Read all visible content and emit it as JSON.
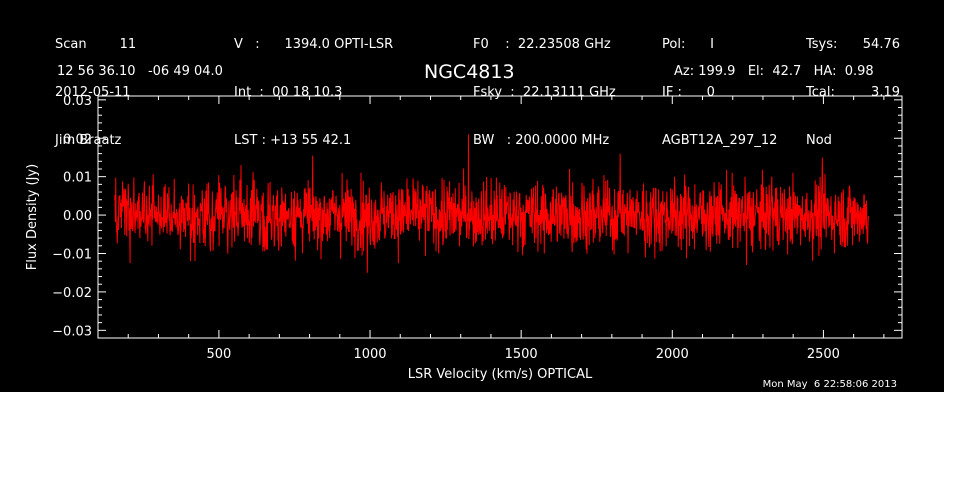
{
  "header": {
    "col1": [
      "Scan        11",
      "2012-05-11",
      "Jim Braatz"
    ],
    "col2": [
      "V   :      1394.0 OPTI-LSR",
      "Int  :  00 18 10.3",
      "LST : +13 55 42.1"
    ],
    "col3": [
      "F0    :  22.23508 GHz",
      "Fsky  :  22.13111 GHz",
      "BW   : 200.0000 MHz"
    ],
    "col4": [
      "Pol:      I",
      "IF :      0",
      "AGBT12A_297_12"
    ],
    "col5_labels": [
      "Tsys:",
      "Tcal:",
      "Nod"
    ],
    "col5_values": [
      "54.76",
      "3.19",
      ""
    ],
    "coords": "12 56 36.10   -06 49 04.0",
    "source": "NGC4813",
    "pointing": "Az: 199.9   El:  42.7   HA:  0.98",
    "timestamp": "Mon May  6 22:58:06 2013"
  },
  "colors": {
    "background": "#000000",
    "foreground": "#ffffff",
    "series": "#ff0000"
  },
  "chart_data": {
    "type": "line",
    "title": "NGC4813",
    "xlabel": "LSR Velocity (km/s) OPTICAL",
    "ylabel": "Flux Density (Jy)",
    "xlim": [
      100,
      2760
    ],
    "ylim": [
      -0.032,
      0.031
    ],
    "x_ticks": [
      500,
      1000,
      1500,
      2000,
      2500
    ],
    "x_tick_labels": [
      "500",
      "1000",
      "1500",
      "2000",
      "2500"
    ],
    "y_ticks": [
      -0.03,
      -0.02,
      -0.01,
      0.0,
      0.01,
      0.02,
      0.03
    ],
    "y_tick_labels": [
      "−0.03",
      "−0.02",
      "−0.01",
      "0.00",
      "0.01",
      "0.02",
      "0.03"
    ],
    "series": [
      {
        "color": "#ff0000",
        "x_range": [
          155,
          2650
        ],
        "mean": 0.0,
        "rms": 0.0055,
        "values_sample": [
          0.004,
          -0.006,
          0.008,
          -0.012,
          0.002,
          0.013,
          -0.009,
          0.006,
          -0.003,
          0.011,
          -0.015,
          0.005,
          0.009,
          -0.007,
          0.021,
          -0.004,
          0.003,
          -0.01,
          0.012,
          -0.006,
          0.016,
          -0.011,
          0.007,
          -0.002,
          0.008,
          -0.013,
          0.01,
          -0.005,
          0.015,
          -0.008
        ]
      }
    ]
  }
}
